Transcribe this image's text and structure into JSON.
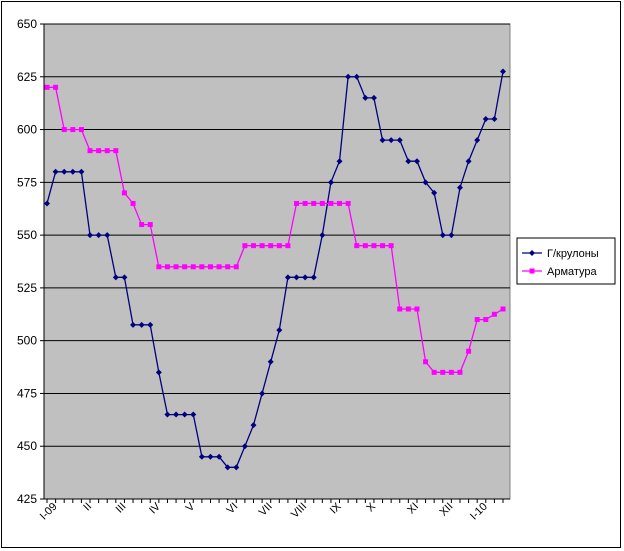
{
  "chart_data": {
    "type": "line",
    "ylim": [
      425,
      650
    ],
    "yticks": [
      425,
      450,
      475,
      500,
      525,
      550,
      575,
      600,
      625,
      650
    ],
    "xtick_labels": [
      "I-09",
      "II",
      "III",
      "IV",
      "V",
      "VI",
      "VII",
      "VIII",
      "IX",
      "X",
      "XI",
      "XII",
      "I-10"
    ],
    "grid": true,
    "legend_position": "right",
    "series": [
      {
        "name": "Г/крулоны",
        "color": "#000080",
        "marker": "diamond",
        "values": [
          565,
          580,
          580,
          580,
          580,
          550,
          550,
          550,
          530,
          530,
          507.5,
          507.5,
          507.5,
          485,
          465,
          465,
          465,
          465,
          445,
          445,
          445,
          440,
          440,
          450,
          460,
          475,
          490,
          505,
          530,
          530,
          530,
          530,
          550,
          575,
          585,
          625,
          625,
          615,
          615,
          595,
          595,
          595,
          585,
          585,
          575,
          570,
          550,
          550,
          572.5,
          585,
          595,
          605,
          605,
          627.5
        ]
      },
      {
        "name": "Арматура",
        "color": "#FF00FF",
        "marker": "square",
        "values": [
          620,
          620,
          600,
          600,
          600,
          590,
          590,
          590,
          590,
          570,
          565,
          555,
          555,
          535,
          535,
          535,
          535,
          535,
          535,
          535,
          535,
          535,
          535,
          545,
          545,
          545,
          545,
          545,
          545,
          565,
          565,
          565,
          565,
          565,
          565,
          565,
          545,
          545,
          545,
          545,
          545,
          515,
          515,
          515,
          490,
          485,
          485,
          485,
          485,
          495,
          510,
          510,
          512.5,
          515
        ]
      }
    ]
  }
}
